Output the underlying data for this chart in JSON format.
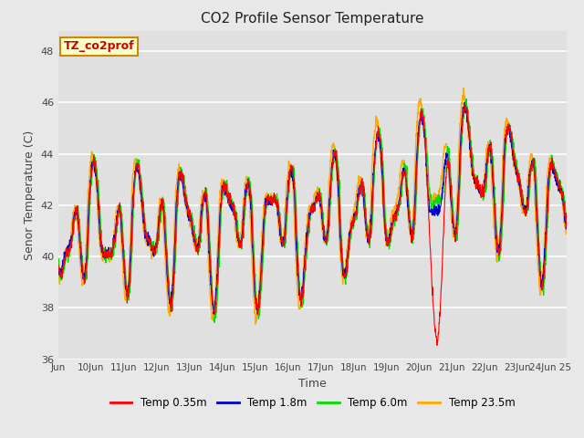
{
  "title": "CO2 Profile Sensor Temperature",
  "xlabel": "Time",
  "ylabel": "Senor Temperature (C)",
  "ylim": [
    36,
    48.8
  ],
  "xlim_days": [
    9.0,
    24.5
  ],
  "background_color": "#e8e8e8",
  "plot_bg": "#e0e0e0",
  "annotation_text": "TZ_co2prof",
  "annotation_color": "#cc0000",
  "annotation_bg": "#ffffcc",
  "annotation_border": "#cc8800",
  "colors": {
    "temp035": "#ff0000",
    "temp18": "#0000cc",
    "temp60": "#00dd00",
    "temp235": "#ffaa00"
  },
  "legend_labels": [
    "Temp 0.35m",
    "Temp 1.8m",
    "Temp 6.0m",
    "Temp 23.5m"
  ],
  "xtick_labels": [
    "Jun",
    "10Jun",
    "11Jun",
    "12Jun",
    "13Jun",
    "14Jun",
    "15Jun",
    "16Jun",
    "17Jun",
    "18Jun",
    "19Jun",
    "20Jun",
    "21Jun",
    "22Jun",
    "23Jun",
    "24Jun 25"
  ],
  "xtick_positions": [
    9,
    10,
    11,
    12,
    13,
    14,
    15,
    16,
    17,
    18,
    19,
    20,
    21,
    22,
    23,
    24
  ],
  "ytick_positions": [
    36,
    38,
    40,
    42,
    44,
    46,
    48
  ],
  "seed": 42
}
